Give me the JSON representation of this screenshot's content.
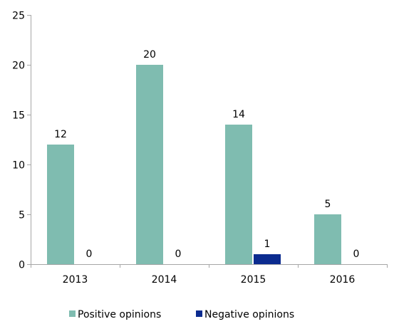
{
  "chart_data": {
    "type": "bar",
    "categories": [
      "2013",
      "2014",
      "2015",
      "2016"
    ],
    "series": [
      {
        "name": "Positive opinions",
        "values": [
          12,
          20,
          14,
          5
        ],
        "color": "#7FBCB0"
      },
      {
        "name": "Negative opinions",
        "values": [
          0,
          0,
          1,
          0
        ],
        "color": "#0B2B8F"
      }
    ],
    "ylim": [
      0,
      25
    ],
    "yticks": [
      0,
      5,
      10,
      15,
      20,
      25
    ],
    "ytick_labels": [
      "0",
      "5",
      "10",
      "15",
      "20",
      "25"
    ],
    "title": "",
    "xlabel": "",
    "ylabel": "",
    "grid": false,
    "legend_position": "bottom"
  }
}
